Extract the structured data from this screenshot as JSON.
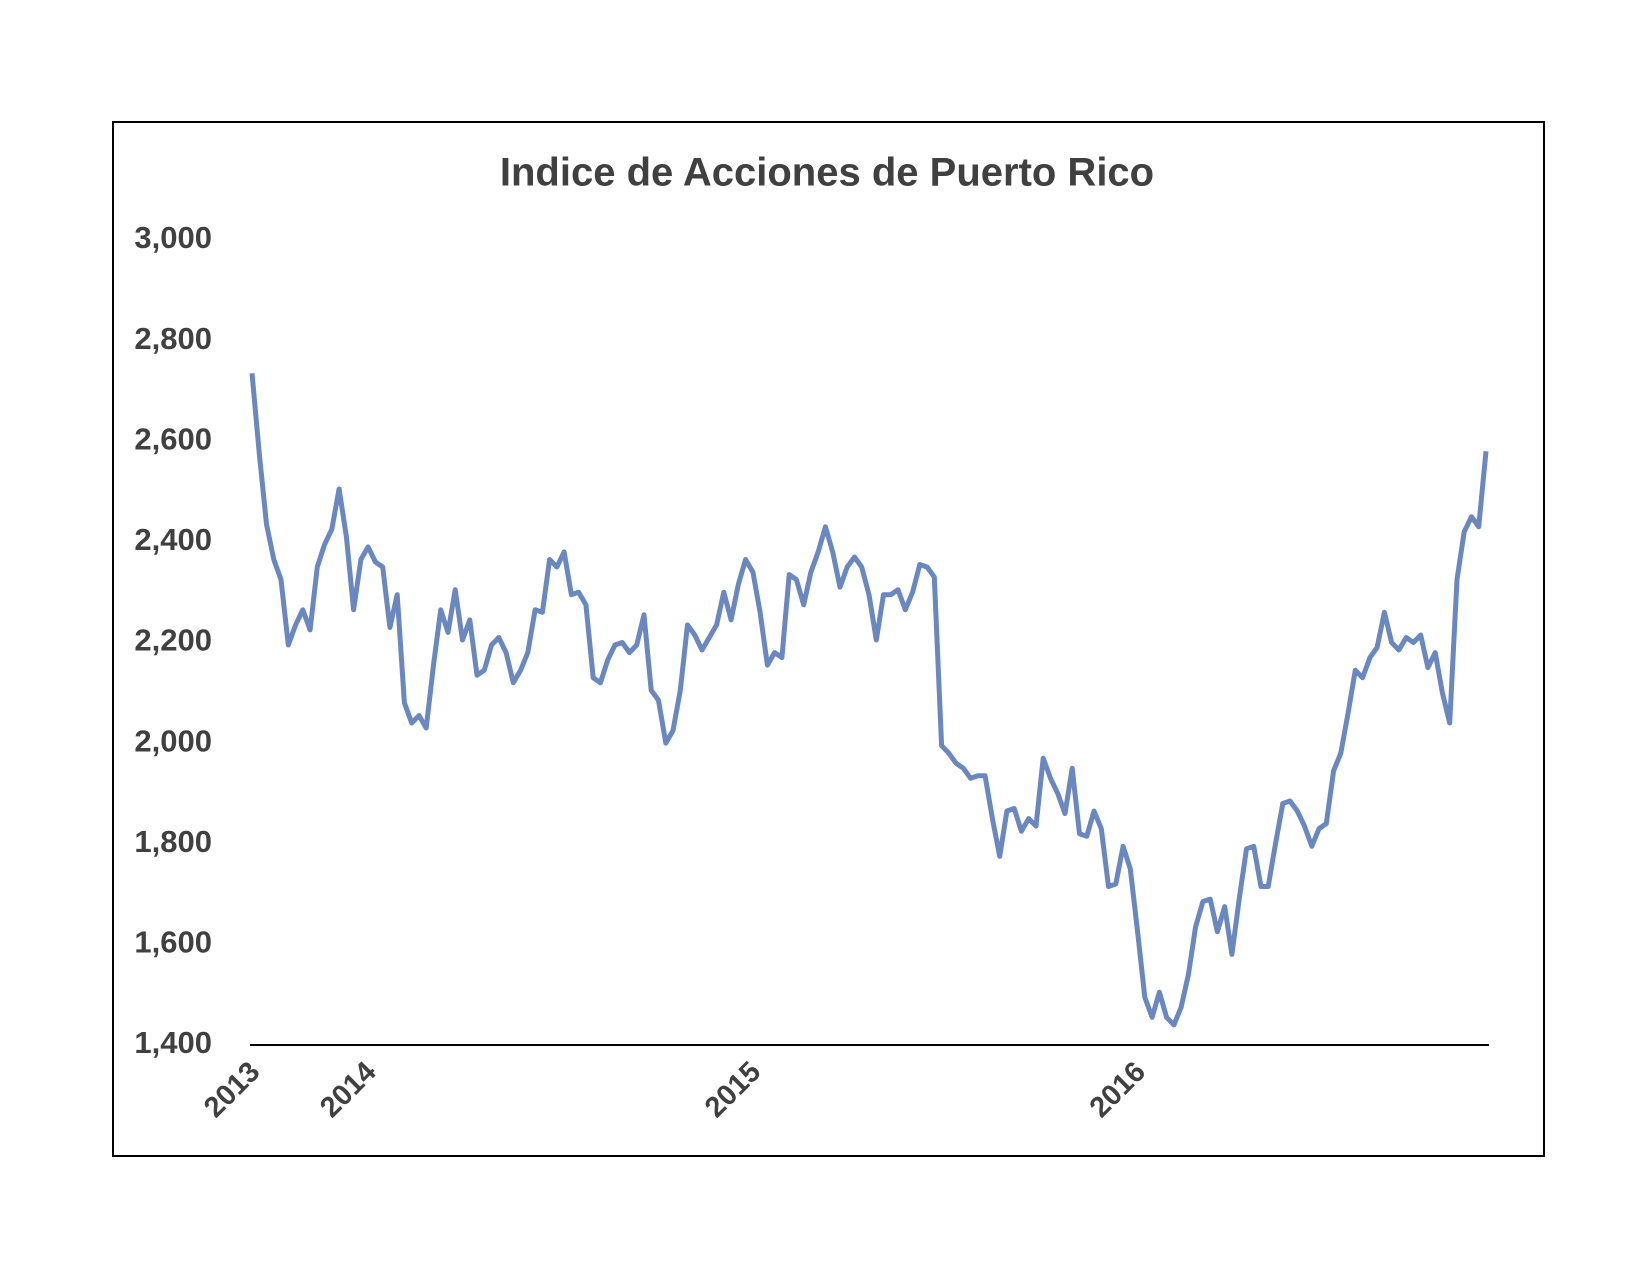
{
  "chart_data": {
    "type": "line",
    "title": "Indice de Acciones de Puerto Rico",
    "categories": [
      "2013",
      null,
      null,
      null,
      null,
      null,
      null,
      null,
      null,
      null,
      null,
      null,
      null,
      null,
      null,
      null,
      "2014",
      null,
      null,
      null,
      null,
      null,
      null,
      null,
      null,
      null,
      null,
      null,
      null,
      null,
      null,
      null,
      null,
      null,
      null,
      null,
      null,
      null,
      null,
      null,
      null,
      null,
      null,
      null,
      null,
      null,
      null,
      null,
      null,
      null,
      null,
      null,
      null,
      null,
      null,
      null,
      null,
      null,
      null,
      null,
      null,
      null,
      null,
      null,
      null,
      null,
      null,
      null,
      null,
      "2015",
      null,
      null,
      null,
      null,
      null,
      null,
      null,
      null,
      null,
      null,
      null,
      null,
      null,
      null,
      null,
      null,
      null,
      null,
      null,
      null,
      null,
      null,
      null,
      null,
      null,
      null,
      null,
      null,
      null,
      null,
      null,
      null,
      null,
      null,
      null,
      null,
      null,
      null,
      null,
      null,
      null,
      null,
      null,
      null,
      null,
      null,
      null,
      null,
      null,
      null,
      null,
      null,
      "2016",
      null,
      null,
      null,
      null,
      null,
      null,
      null,
      null,
      null,
      null,
      null,
      null,
      null,
      null,
      null,
      null,
      null,
      null,
      null,
      null,
      null,
      null,
      null,
      null,
      null,
      null,
      null,
      null,
      null,
      null,
      null,
      null,
      null,
      null,
      null,
      null,
      null,
      null,
      null,
      null,
      null,
      null,
      null,
      null,
      null,
      null,
      null,
      null
    ],
    "values": [
      2735,
      2575,
      2435,
      2365,
      2325,
      2195,
      2235,
      2265,
      2225,
      2350,
      2395,
      2425,
      2505,
      2410,
      2265,
      2365,
      2390,
      2360,
      2350,
      2230,
      2295,
      2080,
      2040,
      2055,
      2030,
      2155,
      2265,
      2220,
      2305,
      2205,
      2245,
      2135,
      2145,
      2195,
      2210,
      2180,
      2120,
      2145,
      2180,
      2265,
      2260,
      2365,
      2350,
      2380,
      2295,
      2300,
      2275,
      2130,
      2120,
      2165,
      2195,
      2200,
      2180,
      2195,
      2255,
      2105,
      2085,
      2000,
      2025,
      2105,
      2235,
      2215,
      2185,
      2210,
      2235,
      2300,
      2245,
      2315,
      2365,
      2340,
      2260,
      2155,
      2180,
      2170,
      2335,
      2325,
      2275,
      2340,
      2380,
      2430,
      2380,
      2310,
      2350,
      2370,
      2350,
      2295,
      2205,
      2295,
      2295,
      2305,
      2265,
      2300,
      2355,
      2350,
      2330,
      1995,
      1980,
      1960,
      1950,
      1930,
      1935,
      1935,
      1850,
      1775,
      1865,
      1870,
      1825,
      1850,
      1835,
      1970,
      1930,
      1900,
      1860,
      1950,
      1820,
      1815,
      1865,
      1830,
      1715,
      1720,
      1795,
      1750,
      1625,
      1495,
      1455,
      1505,
      1455,
      1440,
      1475,
      1540,
      1635,
      1685,
      1690,
      1625,
      1675,
      1580,
      1690,
      1790,
      1795,
      1715,
      1715,
      1800,
      1880,
      1885,
      1865,
      1835,
      1795,
      1830,
      1840,
      1945,
      1980,
      2060,
      2145,
      2130,
      2170,
      2190,
      2260,
      2200,
      2185,
      2210,
      2200,
      2215,
      2150,
      2180,
      2100,
      2040,
      2325,
      2420,
      2450,
      2430,
      2580
    ],
    "color": "#6a87c0",
    "ylim": [
      1400,
      3000
    ],
    "yticks": [
      {
        "value": 1400,
        "label": "1,400"
      },
      {
        "value": 1600,
        "label": "1,600"
      },
      {
        "value": 1800,
        "label": "1,800"
      },
      {
        "value": 2000,
        "label": "2,000"
      },
      {
        "value": 2200,
        "label": "2,200"
      },
      {
        "value": 2400,
        "label": "2,400"
      },
      {
        "value": 2600,
        "label": "2,600"
      },
      {
        "value": 2800,
        "label": "2,800"
      },
      {
        "value": 3000,
        "label": "3,000"
      }
    ],
    "grid": false
  }
}
